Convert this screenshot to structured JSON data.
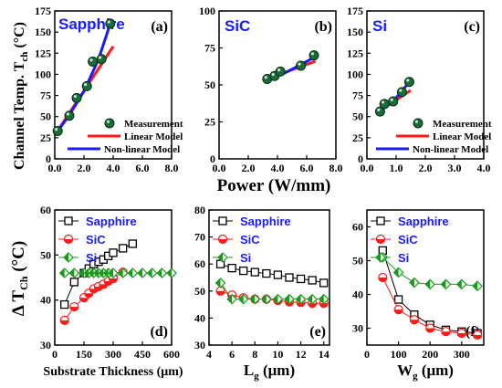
{
  "colors": {
    "measurement": "#1a6b3a",
    "linear": "#ff1a1a",
    "nonlinear": "#1a1aff",
    "sapphire": "#000000",
    "sic": "#ff1a1a",
    "si": "#1a9a1a",
    "title": "#1a1aff"
  },
  "common": {
    "top_ylabel": "Channel Temp. T",
    "top_ylabel_sub": "ch",
    "top_ylabel_unit": " (°C)",
    "top_xlabel": "Power (W/mm)",
    "bottom_ylabel": "Δ T",
    "bottom_ylabel_sub": "Ch",
    "bottom_ylabel_unit": " (°C)"
  },
  "chart_data": [
    {
      "id": "a",
      "type": "scatter",
      "title": "Sapphire",
      "panel_label": "(a)",
      "xlim": [
        0,
        8
      ],
      "ylim": [
        0,
        175
      ],
      "xticks": [
        "0.0",
        "2.0",
        "4.0",
        "6.0",
        "8.0"
      ],
      "xtick_values": [
        0,
        2,
        4,
        6,
        8
      ],
      "yticks": [
        "0",
        "25",
        "50",
        "75",
        "100",
        "125",
        "150",
        "175"
      ],
      "ytick_values": [
        0,
        25,
        50,
        75,
        100,
        125,
        150,
        175
      ],
      "series": [
        {
          "name": "Measurement",
          "kind": "points",
          "x": [
            0.2,
            1.0,
            1.5,
            2.2,
            2.6,
            3.2,
            3.8
          ],
          "y": [
            33,
            51,
            72,
            86,
            115,
            118,
            160
          ]
        },
        {
          "name": "Linear Model",
          "kind": "line",
          "x": [
            0.0,
            4.0
          ],
          "y": [
            28,
            133
          ]
        },
        {
          "name": "Non-linear Model",
          "kind": "line",
          "x": [
            0.0,
            1.0,
            2.0,
            3.0,
            3.8
          ],
          "y": [
            28,
            52,
            80,
            118,
            160
          ]
        }
      ],
      "legend_entries": [
        "Measurement",
        "Linear Model",
        "Non-linear Model"
      ]
    },
    {
      "id": "b",
      "type": "scatter",
      "title": "SiC",
      "panel_label": "(b)",
      "xlim": [
        0,
        8
      ],
      "ylim": [
        0,
        100
      ],
      "xticks": [
        "0.0",
        "2.0",
        "4.0",
        "6.0",
        "8.0"
      ],
      "xtick_values": [
        0,
        2,
        4,
        6,
        8
      ],
      "yticks": [
        "0",
        "25",
        "50",
        "75",
        "100"
      ],
      "ytick_values": [
        0,
        25,
        50,
        75,
        100
      ],
      "series": [
        {
          "name": "Measurement",
          "kind": "points",
          "x": [
            3.3,
            3.8,
            4.2,
            5.6,
            6.5
          ],
          "y": [
            54,
            56,
            59,
            63,
            70
          ]
        },
        {
          "name": "Linear Model",
          "kind": "line",
          "x": [
            3.0,
            6.6
          ],
          "y": [
            53,
            66
          ]
        },
        {
          "name": "Non-linear Model",
          "kind": "line",
          "x": [
            3.0,
            4.5,
            6.6
          ],
          "y": [
            53,
            58,
            69
          ]
        }
      ]
    },
    {
      "id": "c",
      "type": "scatter",
      "title": "Si",
      "panel_label": "(c)",
      "xlim": [
        0,
        4
      ],
      "ylim": [
        0,
        175
      ],
      "xticks": [
        "0.0",
        "1.0",
        "2.0",
        "3.0",
        "4.0"
      ],
      "xtick_values": [
        0,
        1,
        2,
        3,
        4
      ],
      "yticks": [
        "0",
        "25",
        "50",
        "75",
        "100",
        "125",
        "150",
        "175"
      ],
      "ytick_values": [
        0,
        25,
        50,
        75,
        100,
        125,
        150,
        175
      ],
      "series": [
        {
          "name": "Measurement",
          "kind": "points",
          "x": [
            0.45,
            0.6,
            0.9,
            1.2,
            1.45
          ],
          "y": [
            56,
            65,
            68,
            79,
            91
          ]
        },
        {
          "name": "Linear Model",
          "kind": "line",
          "x": [
            0.4,
            1.5
          ],
          "y": [
            56,
            81
          ]
        },
        {
          "name": "Non-linear Model",
          "kind": "line",
          "x": [
            0.4,
            0.9,
            1.5
          ],
          "y": [
            56,
            68,
            93
          ]
        }
      ],
      "legend_entries": [
        "Measurement",
        "Linear Model",
        "Non-linear Model"
      ]
    },
    {
      "id": "d",
      "type": "line",
      "panel_label": "(d)",
      "xlabel": "Substrate Thickness (μm)",
      "xlim": [
        0,
        600
      ],
      "ylim": [
        30,
        60
      ],
      "xticks": [
        "0",
        "150",
        "300",
        "450",
        "600"
      ],
      "xtick_values": [
        0,
        150,
        300,
        450,
        600
      ],
      "yticks": [
        "30",
        "40",
        "50",
        "60"
      ],
      "ytick_values": [
        30,
        40,
        50,
        60
      ],
      "series": [
        {
          "name": "Sapphire",
          "marker": "square",
          "x": [
            50,
            100,
            150,
            175,
            200,
            225,
            250,
            275,
            300,
            350,
            400
          ],
          "y": [
            39,
            44,
            46,
            47,
            48,
            48.5,
            49,
            49.8,
            50.5,
            51.5,
            52.5
          ]
        },
        {
          "name": "SiC",
          "marker": "circle",
          "x": [
            50,
            100,
            150,
            175,
            200,
            225,
            250,
            275,
            300,
            350
          ],
          "y": [
            35.5,
            38.5,
            40.5,
            41.5,
            42.5,
            43,
            43.5,
            44.2,
            44.8,
            46.2
          ]
        },
        {
          "name": "Si",
          "marker": "diamond",
          "x": [
            50,
            100,
            150,
            175,
            200,
            225,
            250,
            275,
            300,
            350,
            400,
            450,
            500,
            550,
            600
          ],
          "y": [
            46,
            46,
            46,
            46,
            46,
            46,
            46,
            46,
            46,
            46,
            46,
            46,
            46,
            46,
            46
          ]
        }
      ],
      "legend_entries": [
        "Sapphire",
        "SiC",
        "Si"
      ]
    },
    {
      "id": "e",
      "type": "line",
      "panel_label": "(e)",
      "xlabel": "L",
      "xlabel_sub": "g",
      "xlabel_unit": " (μm)",
      "xlim": [
        4,
        14.5
      ],
      "ylim": [
        30,
        80
      ],
      "xticks": [
        "4",
        "6",
        "8",
        "10",
        "12",
        "14"
      ],
      "xtick_values": [
        4,
        6,
        8,
        10,
        12,
        14
      ],
      "yticks": [
        "30",
        "40",
        "50",
        "60",
        "70",
        "80"
      ],
      "ytick_values": [
        30,
        40,
        50,
        60,
        70,
        80
      ],
      "series": [
        {
          "name": "Sapphire",
          "marker": "square",
          "x": [
            5,
            6,
            7,
            8,
            9,
            10,
            11,
            12,
            13,
            14
          ],
          "y": [
            60,
            58.5,
            57.5,
            57,
            56.5,
            56,
            55,
            54.5,
            54,
            53
          ]
        },
        {
          "name": "SiC",
          "marker": "circle",
          "x": [
            5,
            6,
            7,
            8,
            9,
            10,
            11,
            12,
            13,
            14
          ],
          "y": [
            50,
            48.5,
            47.5,
            47,
            47,
            46.5,
            46,
            45.8,
            45.5,
            45.5
          ]
        },
        {
          "name": "Si",
          "marker": "diamond",
          "x": [
            5,
            6,
            7,
            8,
            9,
            10,
            11,
            12,
            13,
            14
          ],
          "y": [
            53,
            47,
            47,
            47,
            47,
            47,
            47,
            47,
            47,
            47
          ]
        }
      ],
      "legend_entries": [
        "Sapphire",
        "SiC",
        "Si"
      ]
    },
    {
      "id": "f",
      "type": "line",
      "panel_label": "(f)",
      "xlabel": "W",
      "xlabel_sub": "g",
      "xlabel_unit": " (μm)",
      "xlim": [
        0,
        370
      ],
      "ylim": [
        25,
        65
      ],
      "xticks": [
        "0",
        "100",
        "200",
        "300"
      ],
      "xtick_values": [
        0,
        100,
        200,
        300
      ],
      "yticks": [
        "30",
        "40",
        "50",
        "60"
      ],
      "ytick_values": [
        30,
        40,
        50,
        60
      ],
      "series": [
        {
          "name": "Sapphire",
          "marker": "square",
          "x": [
            50,
            100,
            150,
            200,
            250,
            300,
            350
          ],
          "y": [
            53,
            38.5,
            34,
            31,
            29.5,
            29,
            28.5
          ]
        },
        {
          "name": "SiC",
          "marker": "circle",
          "x": [
            50,
            100,
            150,
            200,
            250,
            300,
            350
          ],
          "y": [
            45,
            35.5,
            32.5,
            30,
            29,
            28.5,
            28
          ]
        },
        {
          "name": "Si",
          "marker": "diamond",
          "x": [
            50,
            100,
            150,
            200,
            250,
            300,
            350
          ],
          "y": [
            51,
            46.5,
            43.5,
            43,
            43,
            43,
            42.5
          ]
        }
      ],
      "legend_entries": [
        "Sapphire",
        "SiC",
        "Si"
      ]
    }
  ]
}
